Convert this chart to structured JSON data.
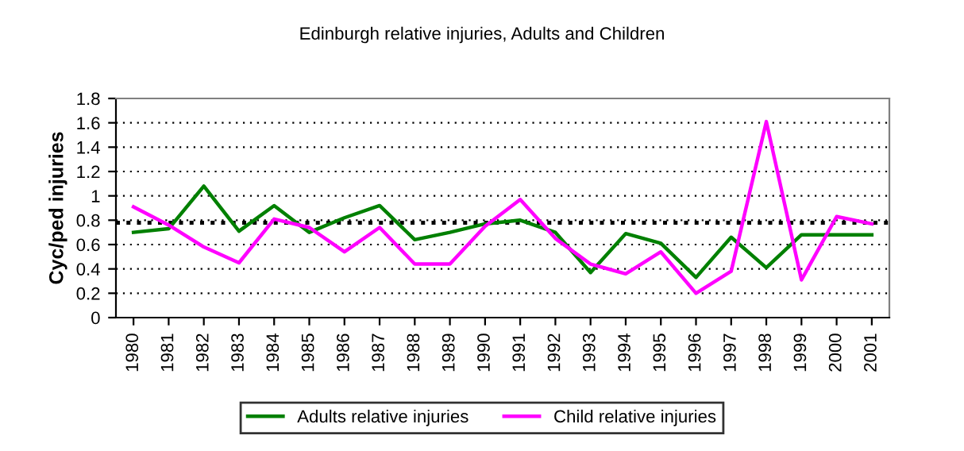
{
  "chart_data": {
    "type": "line",
    "title": "Edinburgh relative injuries, Adults and Children",
    "ylabel": "Cyc/ped injuries",
    "categories": [
      "1980",
      "1981",
      "1982",
      "1983",
      "1984",
      "1985",
      "1986",
      "1987",
      "1988",
      "1989",
      "1990",
      "1991",
      "1992",
      "1993",
      "1994",
      "1995",
      "1996",
      "1997",
      "1998",
      "1999",
      "2000",
      "2001"
    ],
    "series": [
      {
        "name": "Adults relative injuries",
        "color": "#008000",
        "values": [
          0.7,
          0.73,
          1.08,
          0.71,
          0.92,
          0.7,
          0.82,
          0.92,
          0.64,
          0.7,
          0.77,
          0.8,
          0.7,
          0.37,
          0.69,
          0.61,
          0.33,
          0.66,
          0.41,
          0.68,
          0.68,
          0.68
        ]
      },
      {
        "name": "Child relative injuries",
        "color": "#ff00ff",
        "values": [
          0.91,
          0.76,
          0.58,
          0.45,
          0.81,
          0.74,
          0.54,
          0.74,
          0.44,
          0.44,
          0.75,
          0.97,
          0.65,
          0.44,
          0.36,
          0.54,
          0.2,
          0.38,
          1.61,
          0.31,
          0.83,
          0.77
        ]
      }
    ],
    "ylim": [
      0,
      1.8
    ],
    "yticks": [
      0,
      0.2,
      0.4,
      0.6,
      0.8,
      1,
      1.2,
      1.4,
      1.6,
      1.8
    ],
    "ref_lines": [
      {
        "axis": "y",
        "value": 0.78,
        "color": "#000000",
        "line_style": "dotted"
      }
    ],
    "grid": "y",
    "legend": "bottom",
    "marker": "none",
    "line_style": "solid"
  }
}
